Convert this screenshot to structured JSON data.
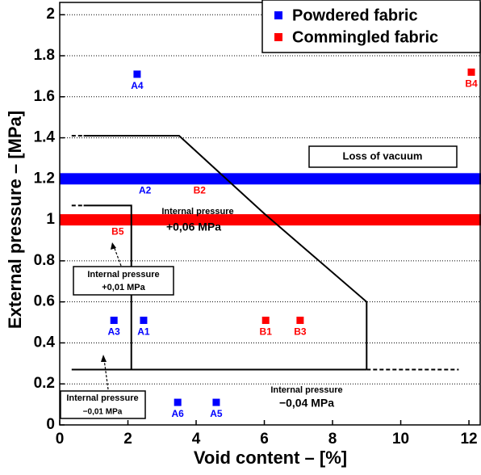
{
  "chart_data": {
    "type": "scatter",
    "x_label": "Void content – [%]",
    "y_label": "External pressure – [MPa]",
    "xlim": [
      0,
      12.33
    ],
    "ylim": [
      0,
      2.06
    ],
    "xticks": [
      0,
      2,
      4,
      6,
      8,
      10,
      12
    ],
    "yticks": [
      0,
      0.2,
      0.4,
      0.6,
      0.8,
      1,
      1.2,
      1.4,
      1.6,
      1.8,
      2
    ],
    "grid": true,
    "legend": "top-right",
    "series": [
      {
        "name": "Powdered fabric",
        "color": "#0000ff",
        "labels": [
          "A1",
          "A2",
          "A3",
          "A4",
          "A5",
          "A6"
        ],
        "x": [
          2.46,
          2.5,
          1.59,
          2.27,
          4.59,
          3.46
        ],
        "values": [
          0.51,
          1.2,
          0.51,
          1.71,
          0.11,
          0.11
        ]
      },
      {
        "name": "Commingled fabric",
        "color": "#ff0000",
        "labels": [
          "B1",
          "B2",
          "B3",
          "B4",
          "B5"
        ],
        "x": [
          6.04,
          4.1,
          7.05,
          12.07,
          1.7
        ],
        "values": [
          0.51,
          1.2,
          0.51,
          1.72,
          1.0
        ]
      }
    ],
    "bands": [
      {
        "y": 1.2,
        "color": "#0000ff"
      },
      {
        "y": 1.0,
        "color": "#ff0000"
      }
    ],
    "lines": [
      {
        "x": [
          0.7,
          3.5,
          6.0,
          9.0,
          9.0
        ],
        "y": [
          1.41,
          1.41,
          1.03,
          0.6,
          0.27
        ],
        "dashed": false
      },
      {
        "x": [
          0.35,
          9.0
        ],
        "y": [
          0.27,
          0.27
        ],
        "dashed": false
      },
      {
        "x": [
          9.0,
          11.7
        ],
        "y": [
          0.27,
          0.27
        ],
        "dashed": true
      },
      {
        "x": [
          0.35,
          0.7
        ],
        "y": [
          1.41,
          1.41
        ],
        "dashed": true
      },
      {
        "x": [
          0.7,
          2.1,
          2.1
        ],
        "y": [
          1.07,
          1.07,
          0.27
        ],
        "dashed": false
      },
      {
        "x": [
          0.35,
          0.7
        ],
        "y": [
          1.07,
          1.07
        ],
        "dashed": true
      }
    ],
    "annotations": {
      "loss_of_vacuum": "Loss of vacuum",
      "p006": [
        "Internal pressure",
        "+0,06 MPa"
      ],
      "p001": [
        "Internal pressure",
        "+0,01 MPa"
      ],
      "m001": [
        "Internal pressure",
        "−0,01 MPa"
      ],
      "m004": [
        "Internal pressure",
        "−0,04 MPa"
      ]
    }
  }
}
